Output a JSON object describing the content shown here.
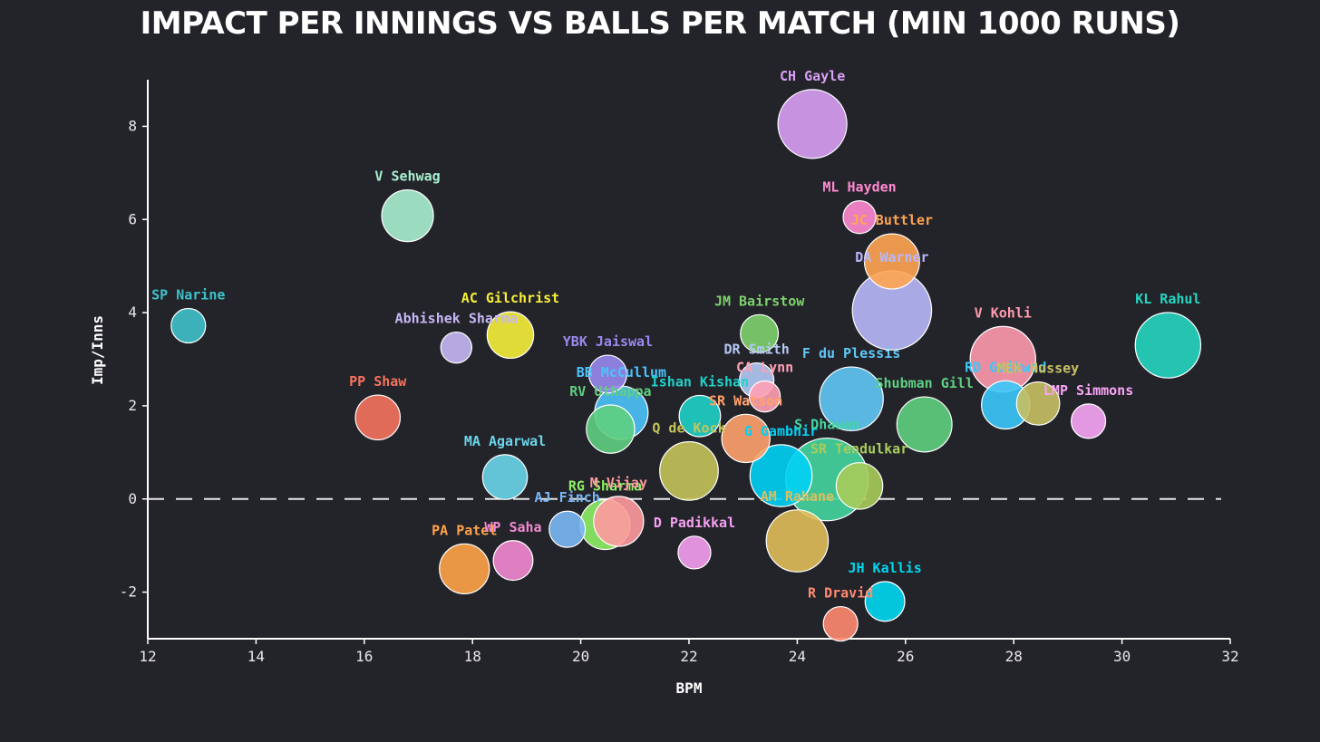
{
  "chart_data": {
    "type": "scatter",
    "title": "IMPACT PER INNINGS VS BALLS PER MATCH (MIN 1000 RUNS)",
    "xlabel": "BPM",
    "ylabel": "Imp/Inns",
    "xlim": [
      12,
      32
    ],
    "ylim": [
      -3,
      9
    ],
    "x_ticks": [
      "12",
      "14",
      "16",
      "18",
      "20",
      "22",
      "24",
      "26",
      "28",
      "30",
      "32"
    ],
    "y_ticks": [
      "-2",
      "0",
      "2",
      "4",
      "6",
      "8"
    ],
    "reference_line": {
      "y": 0,
      "style": "dashed"
    },
    "grid": false,
    "legend": "none",
    "points": [
      {
        "name": "SP Narine",
        "x": 12.75,
        "y": 3.72,
        "size": 1.0,
        "color": "#3fc1c9"
      },
      {
        "name": "V Sehwag",
        "x": 16.8,
        "y": 6.08,
        "size": 1.5,
        "color": "#a8f0cf"
      },
      {
        "name": "PP Shaw",
        "x": 16.25,
        "y": 1.75,
        "size": 1.3,
        "color": "#f5735e"
      },
      {
        "name": "Abhishek Sharma",
        "x": 17.7,
        "y": 3.25,
        "size": 0.9,
        "color": "#c7b8f5"
      },
      {
        "name": "AC Gilchrist",
        "x": 18.7,
        "y": 3.52,
        "size": 1.35,
        "color": "#f6f03a"
      },
      {
        "name": "MA Agarwal",
        "x": 18.6,
        "y": 0.47,
        "size": 1.3,
        "color": "#6ad6ea"
      },
      {
        "name": "PA Patel",
        "x": 17.85,
        "y": -1.5,
        "size": 1.45,
        "color": "#ffa348"
      },
      {
        "name": "WP Saha",
        "x": 18.75,
        "y": -1.32,
        "size": 1.15,
        "color": "#f28ad1"
      },
      {
        "name": "AJ Finch",
        "x": 19.75,
        "y": -0.65,
        "size": 1.05,
        "color": "#7ab8f5"
      },
      {
        "name": "RG Sharma",
        "x": 20.45,
        "y": -0.55,
        "size": 1.45,
        "color": "#8ef065"
      },
      {
        "name": "M Vijay",
        "x": 20.7,
        "y": -0.48,
        "size": 1.45,
        "color": "#ff9a9e"
      },
      {
        "name": "YBK Jaiswal",
        "x": 20.5,
        "y": 2.68,
        "size": 1.1,
        "color": "#9a88f0"
      },
      {
        "name": "BB McCullum",
        "x": 20.75,
        "y": 1.85,
        "size": 1.55,
        "color": "#4cc3fa"
      },
      {
        "name": "RV Uthappa",
        "x": 20.55,
        "y": 1.5,
        "size": 1.4,
        "color": "#5fcf80"
      },
      {
        "name": "Q de Kock",
        "x": 22.0,
        "y": 0.6,
        "size": 1.7,
        "color": "#c4c45a"
      },
      {
        "name": "D Padikkal",
        "x": 22.1,
        "y": -1.15,
        "size": 0.95,
        "color": "#f5a0f0"
      },
      {
        "name": "Ishan Kishan",
        "x": 22.2,
        "y": 1.78,
        "size": 1.2,
        "color": "#1ed2c8"
      },
      {
        "name": "SR Watson",
        "x": 23.05,
        "y": 1.3,
        "size": 1.4,
        "color": "#ffa26b"
      },
      {
        "name": "JM Bairstow",
        "x": 23.3,
        "y": 3.55,
        "size": 1.1,
        "color": "#7fd36b"
      },
      {
        "name": "DR Smith",
        "x": 23.25,
        "y": 2.55,
        "size": 1.0,
        "color": "#b3c9f5"
      },
      {
        "name": "CA Lynn",
        "x": 23.4,
        "y": 2.2,
        "size": 0.9,
        "color": "#ffa0b4"
      },
      {
        "name": "G Gambhir",
        "x": 23.7,
        "y": 0.5,
        "size": 1.8,
        "color": "#00d2f5"
      },
      {
        "name": "S Dhawan",
        "x": 24.55,
        "y": 0.42,
        "size": 2.4,
        "color": "#45d6a0"
      },
      {
        "name": "AM Rahane",
        "x": 24.0,
        "y": -0.9,
        "size": 1.8,
        "color": "#e0be5a"
      },
      {
        "name": "CH Gayle",
        "x": 24.28,
        "y": 8.05,
        "size": 2.0,
        "color": "#d9a0f5"
      },
      {
        "name": "ML Hayden",
        "x": 25.15,
        "y": 6.05,
        "size": 0.95,
        "color": "#ff8ad0"
      },
      {
        "name": "JC Buttler",
        "x": 25.75,
        "y": 5.1,
        "size": 1.6,
        "color": "#ffa552"
      },
      {
        "name": "DA Warner",
        "x": 25.75,
        "y": 4.05,
        "size": 2.3,
        "color": "#b8b8fa"
      },
      {
        "name": "F du Plessis",
        "x": 25.0,
        "y": 2.15,
        "size": 1.85,
        "color": "#5fc8f5"
      },
      {
        "name": "SR Tendulkar",
        "x": 25.15,
        "y": 0.28,
        "size": 1.35,
        "color": "#a8cc5a"
      },
      {
        "name": "Shubman Gill",
        "x": 26.35,
        "y": 1.6,
        "size": 1.6,
        "color": "#5fd080"
      },
      {
        "name": "JH Kallis",
        "x": 25.62,
        "y": -2.2,
        "size": 1.15,
        "color": "#00d8f0"
      },
      {
        "name": "R Dravid",
        "x": 24.8,
        "y": -2.68,
        "size": 1.0,
        "color": "#ff8a70"
      },
      {
        "name": "V Kohli",
        "x": 27.8,
        "y": 3.0,
        "size": 1.9,
        "color": "#ff9aae"
      },
      {
        "name": "RD Gaikwad",
        "x": 27.85,
        "y": 2.02,
        "size": 1.4,
        "color": "#3ac8fa"
      },
      {
        "name": "MEK Hussey",
        "x": 28.45,
        "y": 2.05,
        "size": 1.25,
        "color": "#c8c062"
      },
      {
        "name": "LMP Simmons",
        "x": 29.38,
        "y": 1.67,
        "size": 1.0,
        "color": "#f8a6f5"
      },
      {
        "name": "KL Rahul",
        "x": 30.85,
        "y": 3.3,
        "size": 1.9,
        "color": "#25d6c0"
      }
    ]
  }
}
